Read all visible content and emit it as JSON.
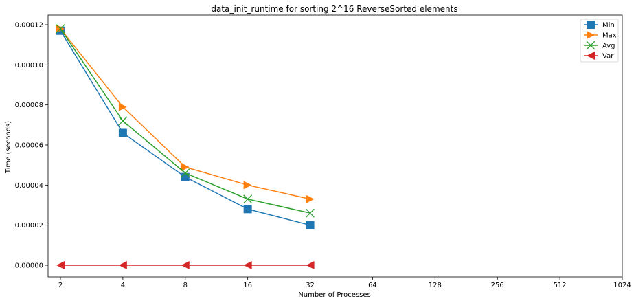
{
  "chart_data": {
    "type": "line",
    "title": "data_init_runtime for sorting 2^16 ReverseSorted elements",
    "xlabel": "Number of Processes",
    "ylabel": "Time (seconds)",
    "x_scale": "log2",
    "x_ticks": [
      "2",
      "4",
      "8",
      "16",
      "32",
      "64",
      "128",
      "256",
      "512",
      "1024"
    ],
    "xlim": [
      2,
      1024
    ],
    "ylim": [
      0,
      0.00012
    ],
    "y_ticks": [
      "0.00000",
      "0.00002",
      "0.00004",
      "0.00006",
      "0.00008",
      "0.00010",
      "0.00012"
    ],
    "y_tick_values": [
      0,
      2e-05,
      4e-05,
      6e-05,
      8e-05,
      0.0001,
      0.00012
    ],
    "grid": false,
    "legend_position": "top-right",
    "x": [
      2,
      4,
      8,
      16,
      32
    ],
    "series": [
      {
        "name": "Min",
        "color": "#1f77b4",
        "marker": "square",
        "values": [
          0.000117,
          6.6e-05,
          4.4e-05,
          2.8e-05,
          2e-05
        ]
      },
      {
        "name": "Max",
        "color": "#ff7f0e",
        "marker": "triangle-right",
        "values": [
          0.000118,
          7.9e-05,
          4.9e-05,
          4e-05,
          3.3e-05
        ]
      },
      {
        "name": "Avg",
        "color": "#2ca02c",
        "marker": "x",
        "values": [
          0.000118,
          7.2e-05,
          4.6e-05,
          3.3e-05,
          2.6e-05
        ]
      },
      {
        "name": "Var",
        "color": "#d62728",
        "marker": "triangle-left",
        "values": [
          0.0,
          0.0,
          0.0,
          0.0,
          0.0
        ]
      }
    ]
  }
}
